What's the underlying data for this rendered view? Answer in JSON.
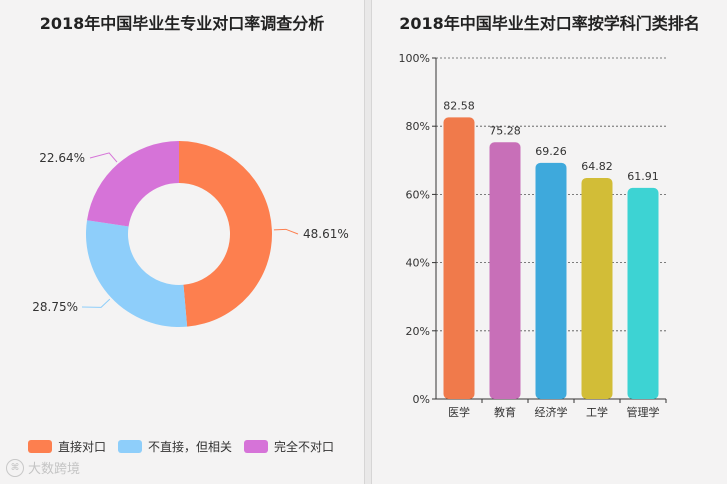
{
  "watermark": "大数跨境",
  "left": {
    "title": "2018年中国毕业生专业对口率调查分析",
    "chart_data": {
      "type": "pie",
      "title": "2018年中国毕业生专业对口率调查分析",
      "categories": [
        "直接对口",
        "不直接，但相关",
        "完全不对口"
      ],
      "values": [
        48.61,
        28.75,
        22.64
      ],
      "labels": [
        "48.61%",
        "28.75%",
        "22.64%"
      ],
      "colors": [
        "#fd7f4f",
        "#8ecefa",
        "#d673d8"
      ],
      "donut": true,
      "legend_position": "bottom-left"
    }
  },
  "right": {
    "title": "2018年中国毕业生对口率按学科门类排名",
    "chart_data": {
      "type": "bar",
      "title": "2018年中国毕业生对口率按学科门类排名",
      "categories": [
        "医学",
        "教育",
        "经济学",
        "工学",
        "管理学"
      ],
      "values": [
        82.58,
        75.28,
        69.26,
        64.82,
        61.91
      ],
      "value_labels": [
        "82.58",
        "75.28",
        "69.26",
        "64.82",
        "61.91"
      ],
      "colors": [
        "#f07a4b",
        "#c86fb8",
        "#3ea9dc",
        "#d2bd37",
        "#3dd3d3"
      ],
      "ylim": [
        0,
        100
      ],
      "yticks": [
        "0%",
        "20%",
        "40%",
        "60%",
        "80%",
        "100%"
      ],
      "grid": true,
      "xlabel": "",
      "ylabel": ""
    }
  }
}
